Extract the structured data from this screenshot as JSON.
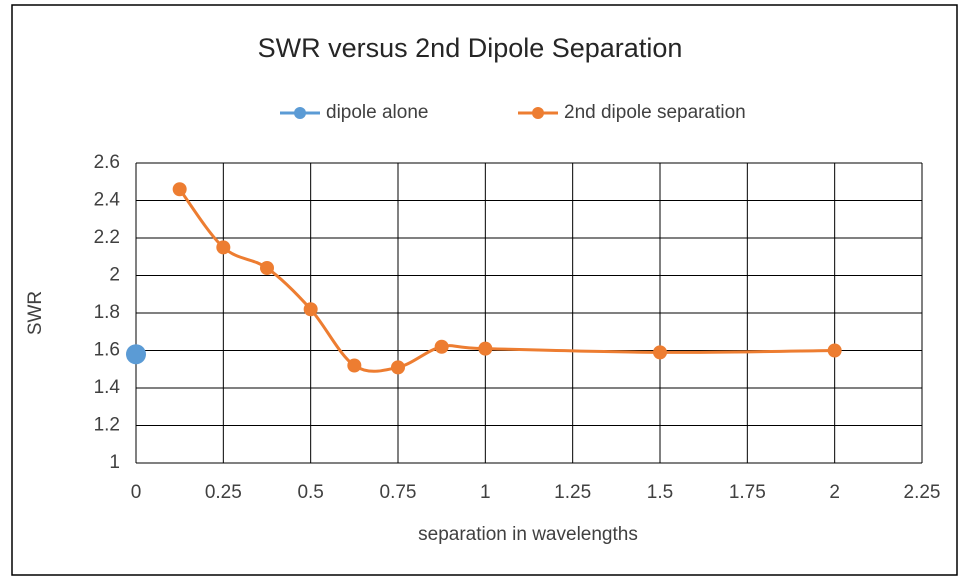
{
  "chart_data": {
    "type": "scatter",
    "title": "SWR versus 2nd Dipole Separation",
    "x_label": "separation in wavelengths",
    "y_label": "SWR",
    "series": [
      {
        "name": "dipole alone",
        "color": "#5b9bd5",
        "x": [
          0
        ],
        "values": [
          1.58
        ]
      },
      {
        "name": "2nd dipole separation",
        "color": "#ed7d31",
        "smooth": true,
        "x": [
          0.125,
          0.25,
          0.375,
          0.5,
          0.625,
          0.75,
          0.875,
          1,
          1.5,
          2
        ],
        "values": [
          2.46,
          2.15,
          2.04,
          1.82,
          1.52,
          1.51,
          1.62,
          1.61,
          1.59,
          1.6
        ]
      }
    ],
    "xlim": [
      0,
      2.25
    ],
    "xticks": [
      0,
      0.25,
      0.5,
      0.75,
      1,
      1.25,
      1.5,
      1.75,
      2,
      2.25
    ],
    "ylim": [
      1,
      2.6
    ],
    "yticks": [
      1,
      1.2,
      1.4,
      1.6,
      1.8,
      2,
      2.2,
      2.4,
      2.6
    ],
    "grid": true,
    "legend": "top"
  }
}
